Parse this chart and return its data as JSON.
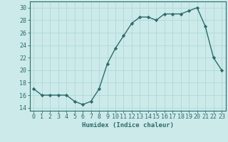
{
  "x": [
    0,
    1,
    2,
    3,
    4,
    5,
    6,
    7,
    8,
    9,
    10,
    11,
    12,
    13,
    14,
    15,
    16,
    17,
    18,
    19,
    20,
    21,
    22,
    23
  ],
  "y": [
    17,
    16,
    16,
    16,
    16,
    15,
    14.5,
    15,
    17,
    21,
    23.5,
    25.5,
    27.5,
    28.5,
    28.5,
    28,
    29,
    29,
    29,
    29.5,
    30,
    27,
    22,
    20
  ],
  "line_color": "#2e6b6b",
  "marker": "D",
  "marker_size": 2.2,
  "bg_color": "#cceaea",
  "grid_color": "#b0d8d8",
  "xlabel": "Humidex (Indice chaleur)",
  "xlim": [
    -0.5,
    23.5
  ],
  "ylim": [
    13.5,
    31
  ],
  "yticks": [
    14,
    16,
    18,
    20,
    22,
    24,
    26,
    28,
    30
  ],
  "xticks": [
    0,
    1,
    2,
    3,
    4,
    5,
    6,
    7,
    8,
    9,
    10,
    11,
    12,
    13,
    14,
    15,
    16,
    17,
    18,
    19,
    20,
    21,
    22,
    23
  ],
  "xlabel_fontsize": 6.5,
  "tick_fontsize": 6.0,
  "line_width": 1.0
}
